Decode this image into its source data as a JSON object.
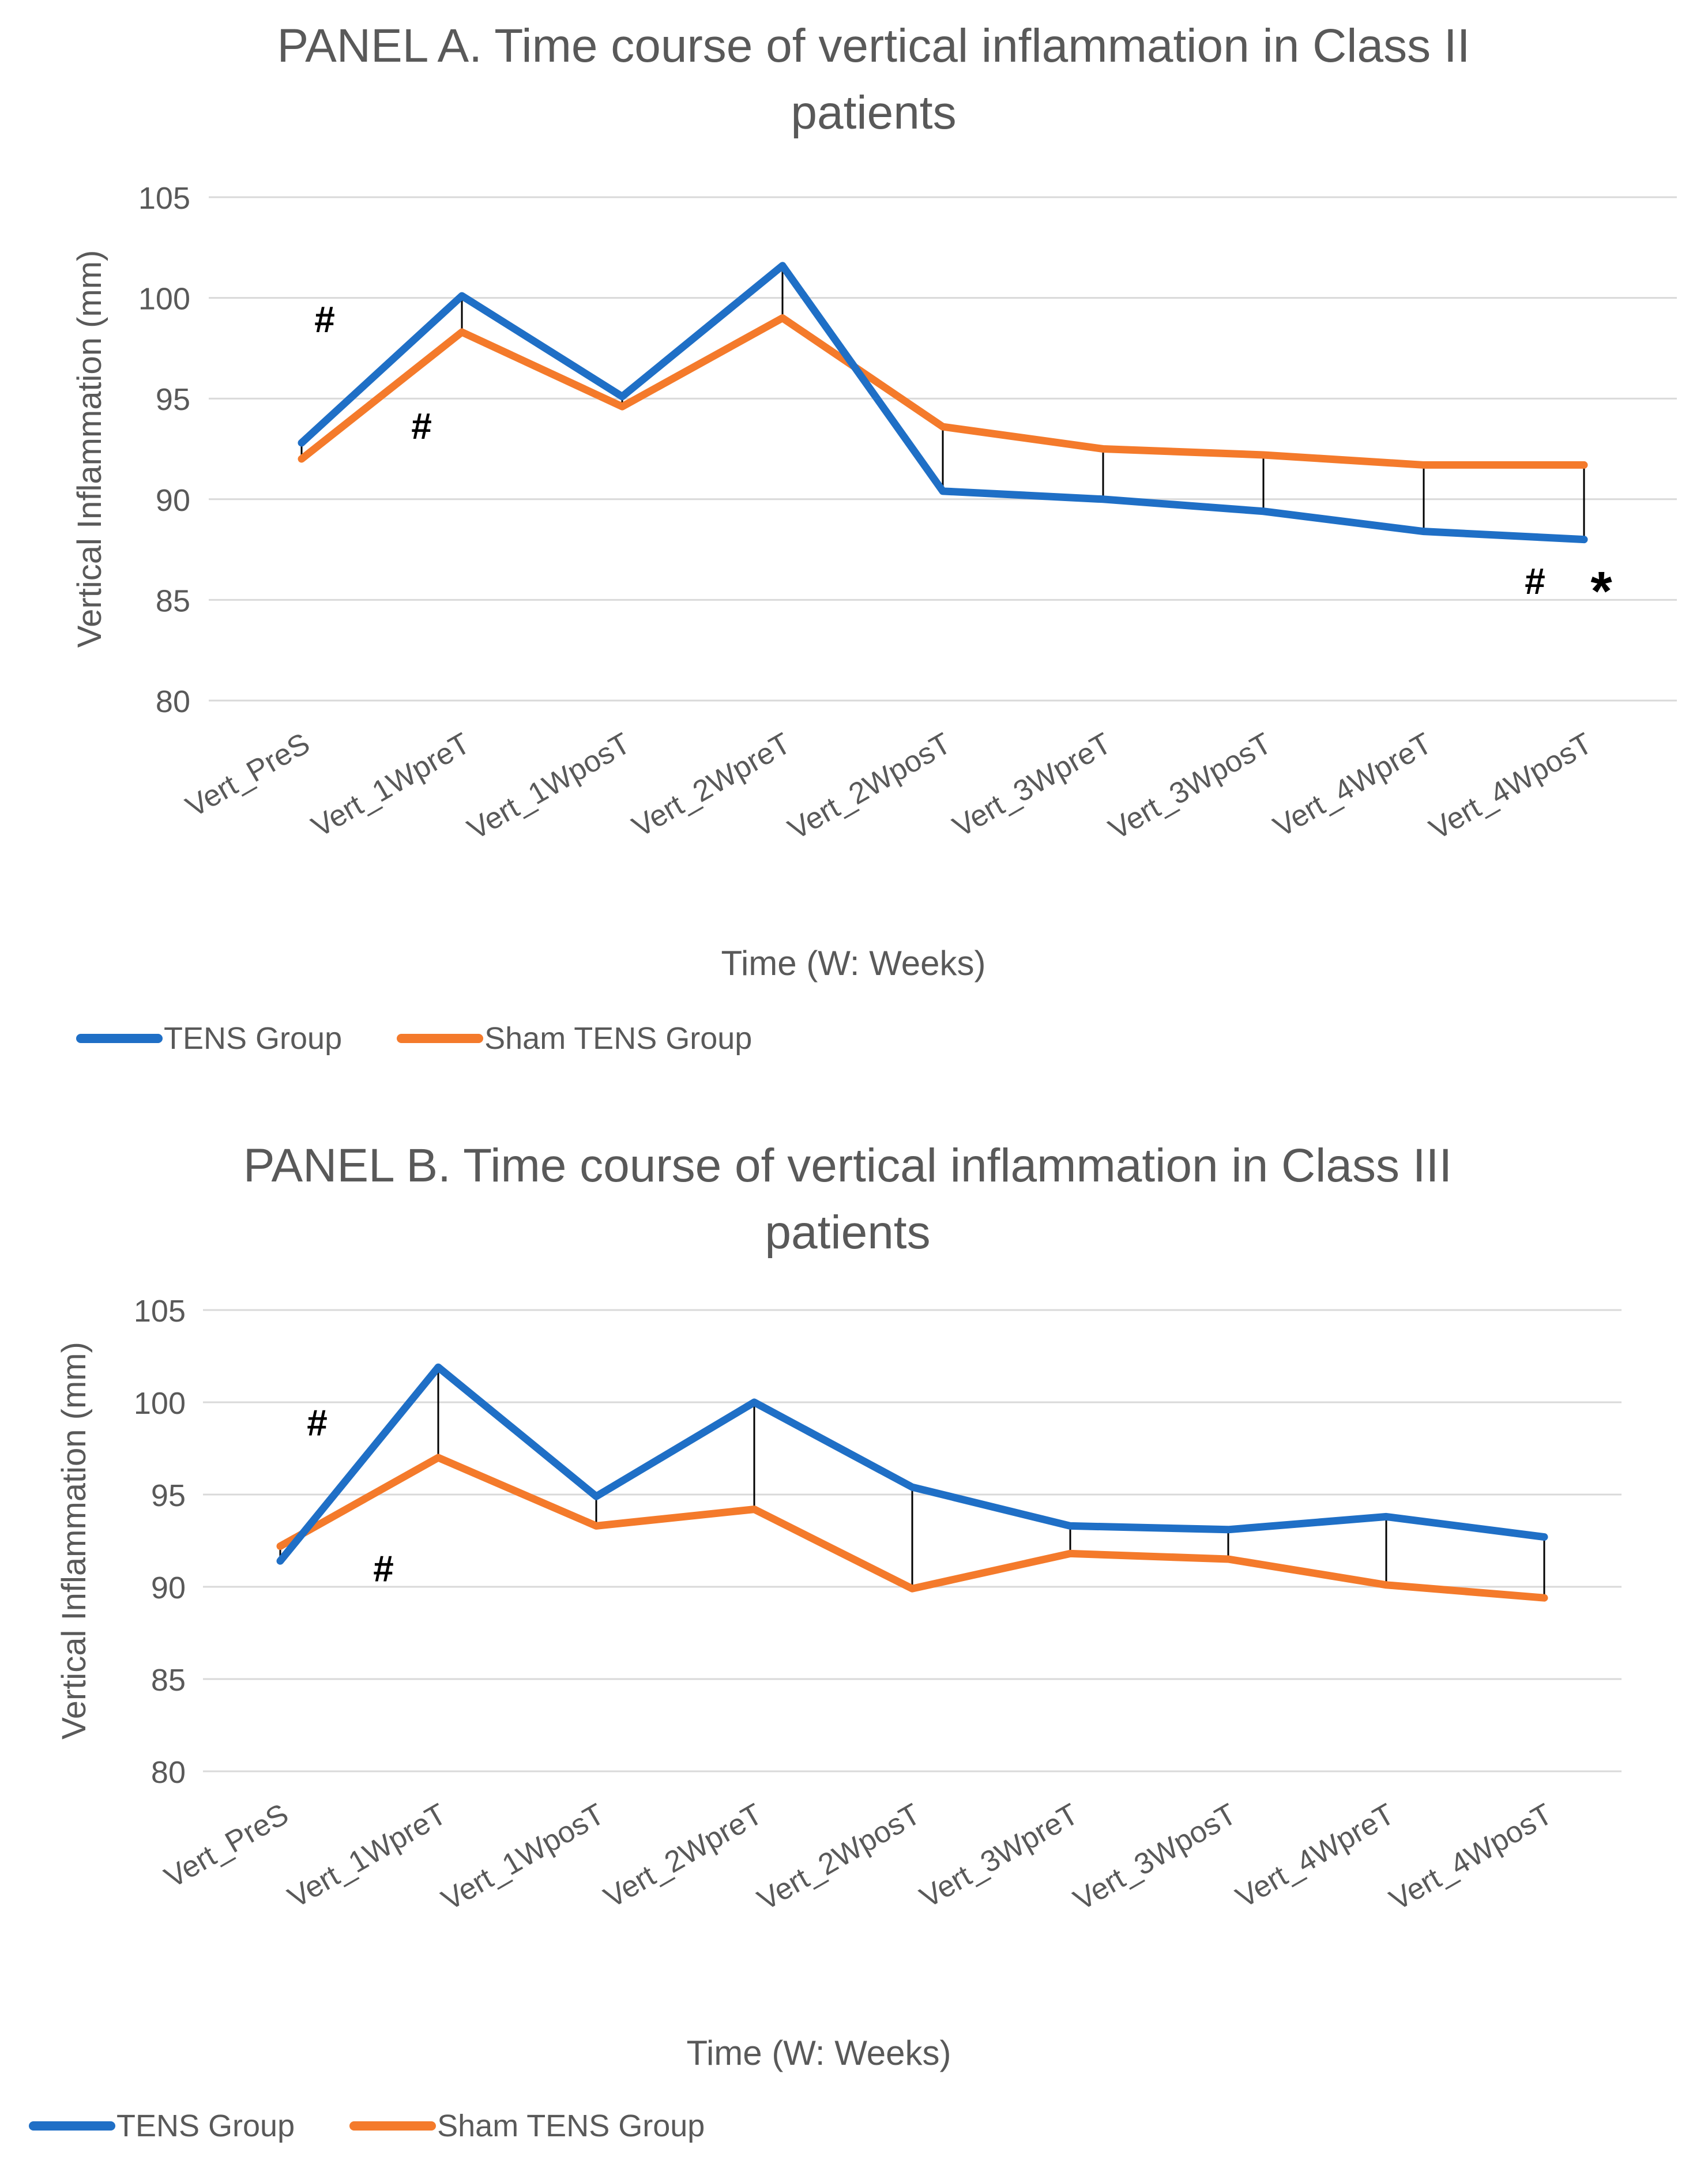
{
  "chart_data": [
    {
      "type": "line",
      "title": "PANEL A. Time course of vertical inflammation in Class II patients",
      "xlabel": "Time (W: Weeks)",
      "ylabel": "Vertical Inflammation (mm)",
      "ylim": [
        80,
        105
      ],
      "yticks": [
        80,
        85,
        90,
        95,
        100,
        105
      ],
      "grid": true,
      "legend_position": "bottom-left",
      "categories": [
        "Vert_PreS",
        "Vert_1WpreT",
        "Vert_1WposT",
        "Vert_2WpreT",
        "Vert_2WposT",
        "Vert_3WpreT",
        "Vert_3WposT",
        "Vert_4WpreT",
        "Vert_4WposT"
      ],
      "series": [
        {
          "name": "TENS Group",
          "color": "#1f6fc6",
          "values": [
            92.8,
            100.1,
            95.1,
            101.6,
            90.4,
            90.0,
            89.4,
            88.4,
            88.0
          ]
        },
        {
          "name": "Sham TENS Group",
          "color": "#f47a2b",
          "values": [
            92.0,
            98.3,
            94.6,
            99.0,
            93.6,
            92.5,
            92.2,
            91.7,
            91.7
          ]
        }
      ],
      "annotations": [
        {
          "text": "#",
          "category": 0,
          "y": 98.3
        },
        {
          "text": "#",
          "category": 1,
          "y": 93.0
        },
        {
          "text": "#",
          "category": 8,
          "y": 85.3
        },
        {
          "text": "*",
          "category": 8,
          "y": 85.3
        }
      ]
    },
    {
      "type": "line",
      "title": "PANEL B. Time course of vertical inflammation in Class III patients",
      "xlabel": "Time (W: Weeks)",
      "ylabel": "Vertical Inflammation (mm)",
      "ylim": [
        80,
        105
      ],
      "yticks": [
        80,
        85,
        90,
        95,
        100,
        105
      ],
      "grid": true,
      "legend_position": "bottom-left",
      "categories": [
        "Vert_PreS",
        "Vert_1WpreT",
        "Vert_1WposT",
        "Vert_2WpreT",
        "Vert_2WposT",
        "Vert_3WpreT",
        "Vert_3WposT",
        "Vert_4WpreT",
        "Vert_4WposT"
      ],
      "series": [
        {
          "name": "TENS Group",
          "color": "#1f6fc6",
          "values": [
            91.4,
            101.9,
            94.9,
            100.0,
            95.4,
            93.3,
            93.1,
            93.8,
            92.7
          ]
        },
        {
          "name": "Sham TENS Group",
          "color": "#f47a2b",
          "values": [
            92.2,
            97.0,
            93.3,
            94.2,
            89.9,
            91.8,
            91.5,
            90.1,
            89.4
          ]
        }
      ],
      "annotations": [
        {
          "text": "#",
          "category": 0,
          "y": 98.2
        },
        {
          "text": "#",
          "category": 1,
          "y": 90.3
        }
      ]
    }
  ]
}
